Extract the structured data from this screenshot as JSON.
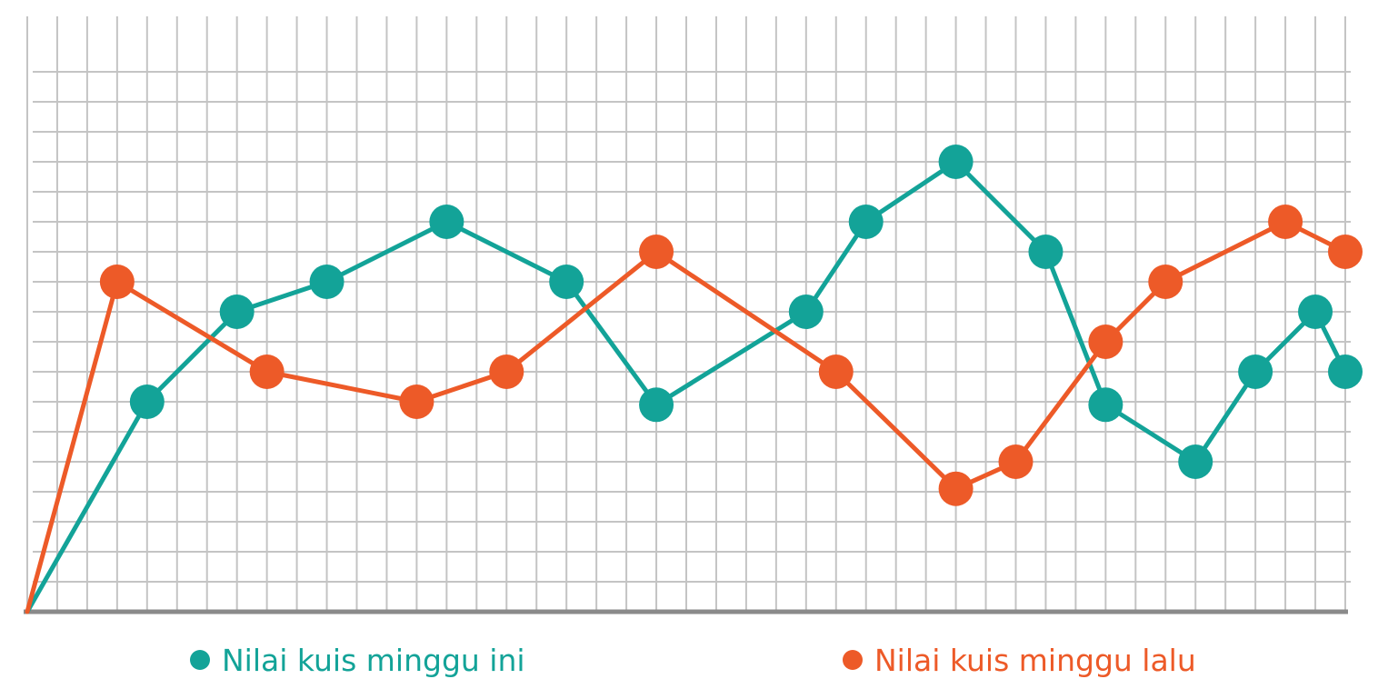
{
  "chart_data": {
    "type": "line",
    "x": [
      0,
      3,
      4,
      7,
      10,
      13,
      14,
      17,
      18,
      21,
      22,
      26,
      27,
      28,
      31,
      32,
      35,
      36,
      37,
      40,
      41,
      42,
      43,
      44
    ],
    "series": [
      {
        "name": "Nilai kuis minggu ini",
        "color": "#13a398",
        "points": [
          [
            0,
            0
          ],
          [
            4,
            7
          ],
          [
            7,
            10
          ],
          [
            10,
            11
          ],
          [
            14,
            13
          ],
          [
            18,
            11
          ],
          [
            21,
            6.9
          ],
          [
            26,
            10
          ],
          [
            28,
            13
          ],
          [
            31,
            15
          ],
          [
            34,
            12
          ],
          [
            36,
            6.9
          ],
          [
            39,
            5
          ],
          [
            41,
            8
          ],
          [
            43,
            10
          ],
          [
            44,
            8
          ]
        ]
      },
      {
        "name": "Nilai kuis minggu lalu",
        "color": "#ed5a28",
        "points": [
          [
            0,
            0
          ],
          [
            3,
            11
          ],
          [
            8,
            8
          ],
          [
            13,
            7
          ],
          [
            16,
            8
          ],
          [
            21,
            12
          ],
          [
            27,
            8
          ],
          [
            31,
            4.1
          ],
          [
            33,
            5
          ],
          [
            36,
            9
          ],
          [
            38,
            11
          ],
          [
            42,
            13
          ],
          [
            44,
            12
          ]
        ]
      }
    ],
    "xlim": [
      0,
      44
    ],
    "ylim": [
      0,
      18
    ],
    "grid": true,
    "legend_position": "bottom"
  },
  "colors": {
    "grid": "#c4c4c4",
    "axis": "#8a8a8a",
    "background": "#ffffff"
  }
}
